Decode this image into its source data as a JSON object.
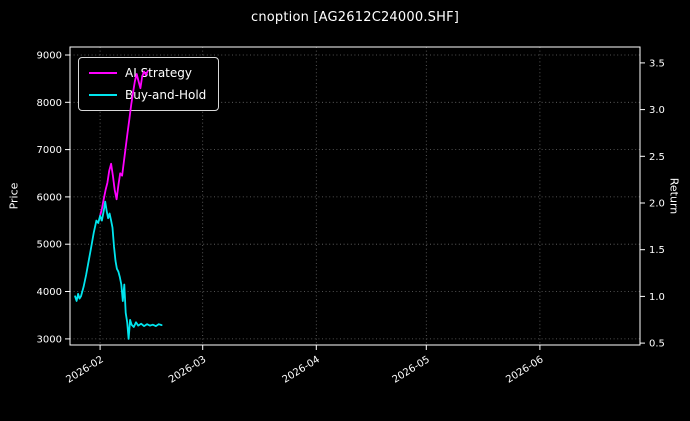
{
  "title": "cnoption [AG2612C24000.SHF]",
  "colors": {
    "background": "#000000",
    "text": "#ffffff",
    "grid": "#6b6b6b",
    "spine": "#ffffff",
    "ai_strategy": "#ff00ff",
    "buy_and_hold": "#00e5ee"
  },
  "chart_data": {
    "type": "line",
    "title": "cnoption [AG2612C24000.SHF]",
    "ylabel_left": "Price",
    "ylabel_right": "Return",
    "x_unit": "days since 2026-02-01",
    "xlim": [
      -8.2,
      147.3
    ],
    "ylim_left": [
      2870,
      9170
    ],
    "ylim_right": [
      0.48,
      3.67
    ],
    "grid": true,
    "legend_position": "upper-left",
    "xticks": [
      {
        "v": 0,
        "label": "2026-02"
      },
      {
        "v": 28,
        "label": "2026-03"
      },
      {
        "v": 59,
        "label": "2026-04"
      },
      {
        "v": 89,
        "label": "2026-05"
      },
      {
        "v": 120,
        "label": "2026-06"
      }
    ],
    "yticks_left": [
      {
        "v": 3000,
        "label": "3000"
      },
      {
        "v": 4000,
        "label": "4000"
      },
      {
        "v": 5000,
        "label": "5000"
      },
      {
        "v": 6000,
        "label": "6000"
      },
      {
        "v": 7000,
        "label": "7000"
      },
      {
        "v": 8000,
        "label": "8000"
      },
      {
        "v": 9000,
        "label": "9000"
      }
    ],
    "yticks_right": [
      {
        "v": 0.5,
        "label": "0.5"
      },
      {
        "v": 1.0,
        "label": "1.0"
      },
      {
        "v": 1.5,
        "label": "1.5"
      },
      {
        "v": 2.0,
        "label": "2.0"
      },
      {
        "v": 2.5,
        "label": "2.5"
      },
      {
        "v": 3.0,
        "label": "3.0"
      },
      {
        "v": 3.5,
        "label": "3.5"
      }
    ],
    "series": [
      {
        "name": "AI Strategy",
        "color": "#ff00ff",
        "axis": "left",
        "points": [
          [
            0,
            5600
          ],
          [
            0.5,
            5750
          ],
          [
            1,
            5950
          ],
          [
            1.5,
            6150
          ],
          [
            2,
            6300
          ],
          [
            2.5,
            6550
          ],
          [
            3,
            6700
          ],
          [
            3.5,
            6450
          ],
          [
            4,
            6150
          ],
          [
            4.5,
            5950
          ],
          [
            5,
            6250
          ],
          [
            5.5,
            6500
          ],
          [
            6,
            6450
          ],
          [
            6.5,
            6750
          ],
          [
            7,
            7050
          ],
          [
            7.5,
            7350
          ],
          [
            8,
            7650
          ],
          [
            8.5,
            7950
          ],
          [
            9,
            8200
          ],
          [
            9.5,
            8450
          ],
          [
            10,
            8600
          ],
          [
            10.5,
            8450
          ],
          [
            11,
            8300
          ],
          [
            11.5,
            8550
          ],
          [
            12,
            8650
          ],
          [
            12.5,
            8580
          ],
          [
            13,
            8660
          ]
        ]
      },
      {
        "name": "Buy-and-Hold",
        "color": "#00e5ee",
        "axis": "left",
        "points": [
          [
            -6.8,
            3900
          ],
          [
            -6.4,
            3800
          ],
          [
            -6,
            3950
          ],
          [
            -5.6,
            3850
          ],
          [
            -5.2,
            3900
          ],
          [
            -4.5,
            4100
          ],
          [
            -3.8,
            4350
          ],
          [
            -3.1,
            4650
          ],
          [
            -2.4,
            4950
          ],
          [
            -1.7,
            5250
          ],
          [
            -1,
            5500
          ],
          [
            -0.5,
            5450
          ],
          [
            0,
            5600
          ],
          [
            0.5,
            5500
          ],
          [
            1,
            5700
          ],
          [
            1.4,
            5900
          ],
          [
            1.8,
            5700
          ],
          [
            2.2,
            5550
          ],
          [
            2.6,
            5650
          ],
          [
            3,
            5500
          ],
          [
            3.4,
            5350
          ],
          [
            3.8,
            4950
          ],
          [
            4.2,
            4650
          ],
          [
            4.6,
            4480
          ],
          [
            5,
            4420
          ],
          [
            5.4,
            4300
          ],
          [
            5.8,
            4150
          ],
          [
            6.2,
            3800
          ],
          [
            6.6,
            4150
          ],
          [
            7,
            3550
          ],
          [
            7.4,
            3350
          ],
          [
            7.8,
            3000
          ],
          [
            8.2,
            3400
          ],
          [
            8.6,
            3300
          ],
          [
            9.2,
            3250
          ],
          [
            9.8,
            3350
          ],
          [
            10.4,
            3280
          ],
          [
            11.2,
            3320
          ],
          [
            12,
            3270
          ],
          [
            12.8,
            3310
          ],
          [
            13.6,
            3280
          ],
          [
            14.4,
            3300
          ],
          [
            15.2,
            3270
          ],
          [
            16,
            3310
          ],
          [
            16.8,
            3290
          ]
        ]
      }
    ]
  }
}
